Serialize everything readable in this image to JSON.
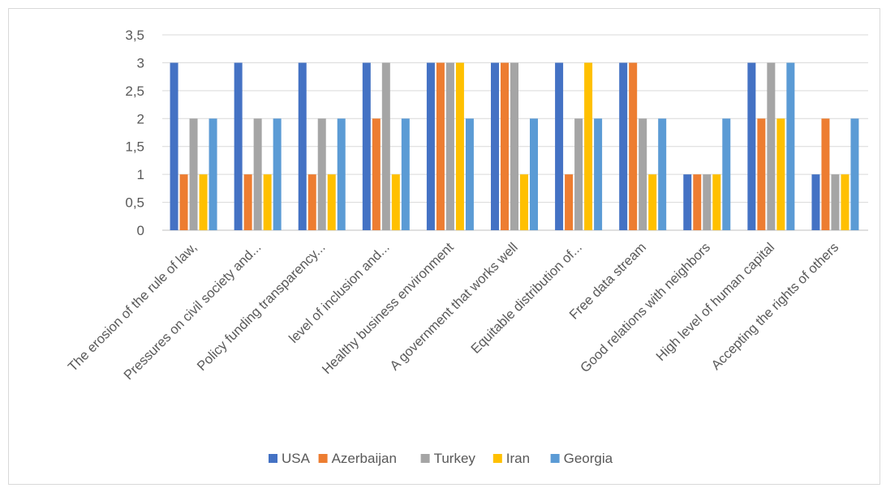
{
  "chart_data": {
    "type": "bar",
    "title": "",
    "xlabel": "",
    "ylabel": "",
    "ylim": [
      0,
      3.5
    ],
    "y_ticks": [
      "0",
      "0,5",
      "1",
      "1,5",
      "2",
      "2,5",
      "3",
      "3,5"
    ],
    "grid": true,
    "legend_position": "bottom",
    "categories": [
      "The erosion of the rule of law,",
      "Pressures on civil society and...",
      "Policy funding transparency...",
      "level of inclusion and...",
      "Healthy business environment",
      "A government that works well",
      "Equitable distribution of...",
      "Free data stream",
      "Good relations with neighbors",
      "High level of human capital",
      "Accepting the rights of others"
    ],
    "series": [
      {
        "name": "USA",
        "color": "#4472c4",
        "values": [
          3,
          3,
          3,
          3,
          3,
          3,
          3,
          3,
          1,
          3,
          1
        ]
      },
      {
        "name": "Azerbaijan",
        "color": "#ed7d31",
        "values": [
          1,
          1,
          1,
          2,
          3,
          3,
          1,
          3,
          1,
          2,
          2
        ]
      },
      {
        "name": "Turkey",
        "color": "#a5a5a5",
        "values": [
          2,
          2,
          2,
          3,
          3,
          3,
          2,
          2,
          1,
          3,
          1
        ]
      },
      {
        "name": "Iran",
        "color": "#ffc000",
        "values": [
          1,
          1,
          1,
          1,
          3,
          1,
          3,
          1,
          1,
          2,
          1
        ]
      },
      {
        "name": "Georgia",
        "color": "#5b9bd5",
        "values": [
          2,
          2,
          2,
          2,
          2,
          2,
          2,
          2,
          2,
          3,
          2
        ]
      }
    ]
  }
}
